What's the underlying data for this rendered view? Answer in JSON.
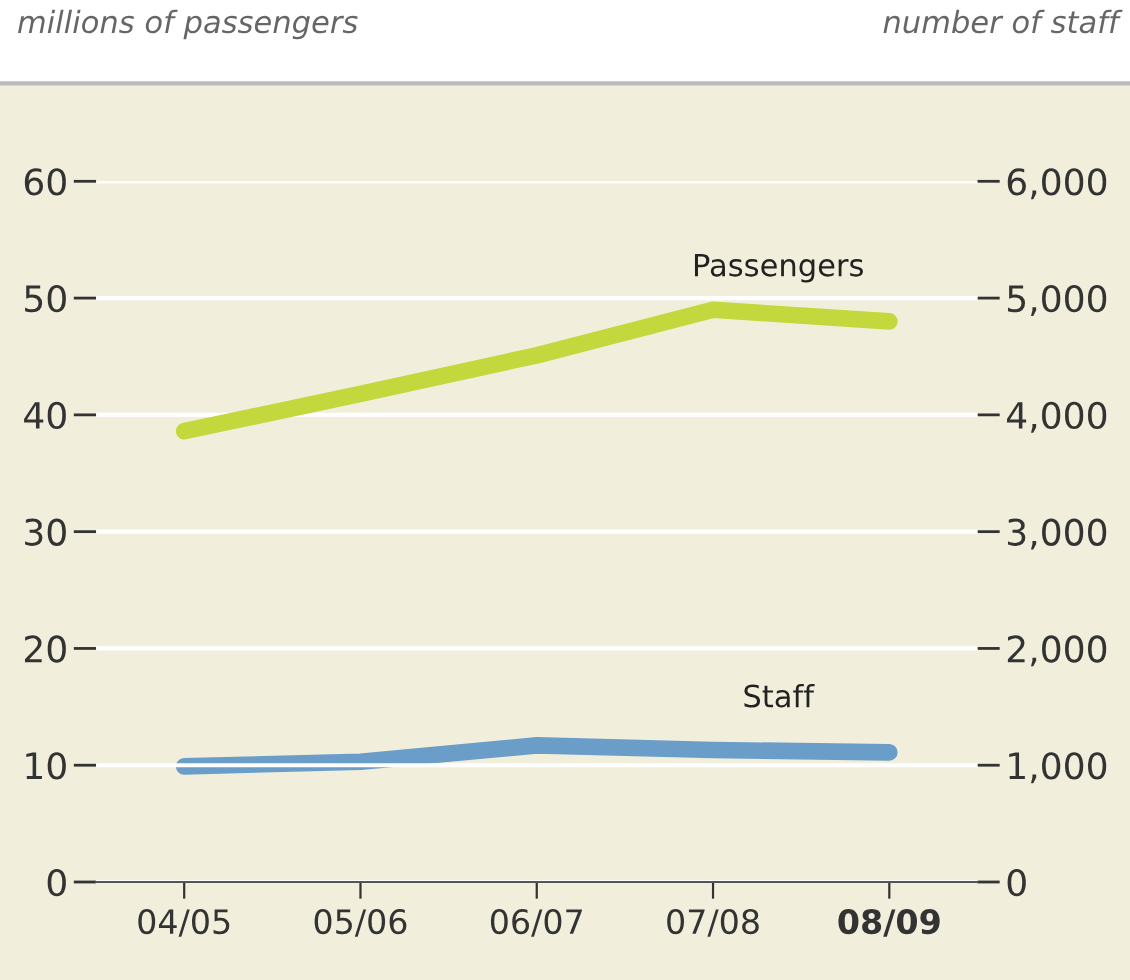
{
  "chart_data": {
    "type": "line",
    "ylabel": "millions of passengers",
    "y2label": "number of staff",
    "categories": [
      "04/05",
      "05/06",
      "06/07",
      "07/08",
      "08/09"
    ],
    "series": [
      {
        "name": "Passengers",
        "color": "#c2d83c",
        "values": [
          38.6,
          41.8,
          45.1,
          49.0,
          48.0
        ]
      },
      {
        "name": "Staff",
        "color": "#6b9dc9",
        "axis": "y2",
        "values": [
          990,
          1030,
          1170,
          1130,
          1110
        ]
      }
    ],
    "ylim": [
      0,
      60
    ],
    "yticks": [
      0,
      10,
      20,
      30,
      40,
      50,
      60
    ],
    "y2lim": [
      0,
      6000
    ],
    "y2ticks": [
      {
        "value": 0,
        "label": "0"
      },
      {
        "value": 1000,
        "label": "1,000"
      },
      {
        "value": 2000,
        "label": "2,000"
      },
      {
        "value": 3000,
        "label": "3,000"
      },
      {
        "value": 4000,
        "label": "4,000"
      },
      {
        "value": 5000,
        "label": "5,000"
      },
      {
        "value": 6000,
        "label": "6,000"
      }
    ],
    "grid": "y",
    "legend": false,
    "marker": "none",
    "line_style": "solid"
  }
}
